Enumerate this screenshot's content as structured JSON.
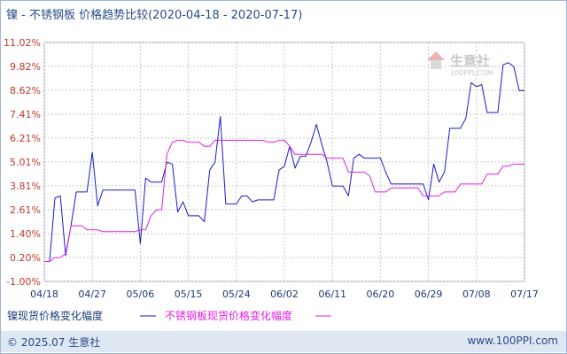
{
  "title": "镍 - 不锈钢板 价格趋势比较(2020-04-18 - 2020-07-17)",
  "watermark": "生意社",
  "watermark_url": "100PPI.COM",
  "footer": {
    "copyright": "© 2025.07 生意社",
    "site": "www.100PPI.com"
  },
  "colors": {
    "nickel": "#1a1acc",
    "steel": "#e020e0",
    "axis_label": "#c0392b",
    "x_label": "#1a3a7a"
  },
  "chart_data": {
    "type": "line",
    "title": "镍 - 不锈钢板 价格趋势比较(2020-04-18 - 2020-07-17)",
    "xlabel": "",
    "ylabel": "",
    "ylim": [
      -1.0,
      11.02
    ],
    "y_ticks": [
      "11.02%",
      "9.82%",
      "8.62%",
      "7.41%",
      "6.21%",
      "5.01%",
      "3.81%",
      "2.61%",
      "1.40%",
      "0.20%",
      "-1.00%"
    ],
    "y_tick_values": [
      11.02,
      9.82,
      8.62,
      7.41,
      6.21,
      5.01,
      3.81,
      2.61,
      1.4,
      0.2,
      -1.0
    ],
    "x_ticks": [
      "04/18",
      "04/27",
      "05/06",
      "05/15",
      "05/24",
      "06/02",
      "06/11",
      "06/20",
      "06/29",
      "07/08",
      "07/17"
    ],
    "x_tick_days": [
      0,
      9,
      18,
      27,
      36,
      45,
      54,
      63,
      72,
      81,
      90
    ],
    "grid": true,
    "legend_position": "bottom",
    "series": [
      {
        "name": "镍现货价格变化幅度",
        "color": "#1a1acc",
        "points": [
          [
            0,
            0.0
          ],
          [
            1,
            0.0
          ],
          [
            2,
            3.2
          ],
          [
            3,
            3.3
          ],
          [
            4,
            0.3
          ],
          [
            5,
            1.8
          ],
          [
            6,
            3.5
          ],
          [
            7,
            3.5
          ],
          [
            8,
            3.5
          ],
          [
            9,
            5.5
          ],
          [
            10,
            2.8
          ],
          [
            11,
            3.6
          ],
          [
            12,
            3.6
          ],
          [
            13,
            3.6
          ],
          [
            14,
            3.6
          ],
          [
            15,
            3.6
          ],
          [
            16,
            3.6
          ],
          [
            17,
            3.6
          ],
          [
            18,
            0.9
          ],
          [
            19,
            4.2
          ],
          [
            20,
            4.0
          ],
          [
            21,
            4.0
          ],
          [
            22,
            4.0
          ],
          [
            23,
            5.0
          ],
          [
            24,
            4.9
          ],
          [
            25,
            2.5
          ],
          [
            26,
            3.0
          ],
          [
            27,
            2.3
          ],
          [
            28,
            2.3
          ],
          [
            29,
            2.3
          ],
          [
            30,
            2.0
          ],
          [
            31,
            4.6
          ],
          [
            32,
            5.0
          ],
          [
            33,
            7.3
          ],
          [
            34,
            2.9
          ],
          [
            35,
            2.9
          ],
          [
            36,
            2.9
          ],
          [
            37,
            3.3
          ],
          [
            38,
            3.3
          ],
          [
            39,
            3.0
          ],
          [
            40,
            3.1
          ],
          [
            41,
            3.1
          ],
          [
            42,
            3.1
          ],
          [
            43,
            3.1
          ],
          [
            44,
            4.6
          ],
          [
            45,
            4.8
          ],
          [
            46,
            5.8
          ],
          [
            47,
            4.7
          ],
          [
            48,
            5.3
          ],
          [
            49,
            5.3
          ],
          [
            50,
            6.0
          ],
          [
            51,
            6.9
          ],
          [
            52,
            5.9
          ],
          [
            53,
            5.0
          ],
          [
            54,
            3.8
          ],
          [
            55,
            3.8
          ],
          [
            56,
            3.8
          ],
          [
            57,
            3.3
          ],
          [
            58,
            5.2
          ],
          [
            59,
            5.4
          ],
          [
            60,
            5.2
          ],
          [
            61,
            5.2
          ],
          [
            62,
            5.2
          ],
          [
            63,
            5.2
          ],
          [
            64,
            4.5
          ],
          [
            65,
            3.9
          ],
          [
            66,
            3.9
          ],
          [
            67,
            3.9
          ],
          [
            68,
            3.9
          ],
          [
            69,
            3.9
          ],
          [
            70,
            3.9
          ],
          [
            71,
            3.9
          ],
          [
            72,
            3.1
          ],
          [
            73,
            4.9
          ],
          [
            74,
            4.0
          ],
          [
            75,
            4.5
          ],
          [
            76,
            6.7
          ],
          [
            77,
            6.7
          ],
          [
            78,
            6.7
          ],
          [
            79,
            7.2
          ],
          [
            80,
            9.0
          ],
          [
            81,
            8.8
          ],
          [
            82,
            8.9
          ],
          [
            83,
            7.5
          ],
          [
            84,
            7.5
          ],
          [
            85,
            7.5
          ],
          [
            86,
            9.9
          ],
          [
            87,
            10.0
          ],
          [
            88,
            9.8
          ],
          [
            89,
            8.6
          ],
          [
            90,
            8.6
          ]
        ]
      },
      {
        "name": "不锈钢板现货价格变化幅度",
        "color": "#e020e0",
        "points": [
          [
            0,
            0.0
          ],
          [
            1,
            0.0
          ],
          [
            2,
            0.2
          ],
          [
            3,
            0.2
          ],
          [
            4,
            0.4
          ],
          [
            5,
            1.8
          ],
          [
            6,
            1.8
          ],
          [
            7,
            1.8
          ],
          [
            8,
            1.6
          ],
          [
            9,
            1.6
          ],
          [
            10,
            1.6
          ],
          [
            11,
            1.5
          ],
          [
            12,
            1.5
          ],
          [
            13,
            1.5
          ],
          [
            14,
            1.5
          ],
          [
            15,
            1.5
          ],
          [
            16,
            1.5
          ],
          [
            17,
            1.5
          ],
          [
            18,
            1.6
          ],
          [
            19,
            1.6
          ],
          [
            20,
            2.3
          ],
          [
            21,
            2.6
          ],
          [
            22,
            2.6
          ],
          [
            23,
            5.4
          ],
          [
            24,
            6.0
          ],
          [
            25,
            6.1
          ],
          [
            26,
            6.1
          ],
          [
            27,
            6.0
          ],
          [
            28,
            6.0
          ],
          [
            29,
            6.0
          ],
          [
            30,
            5.8
          ],
          [
            31,
            5.8
          ],
          [
            32,
            6.1
          ],
          [
            33,
            6.1
          ],
          [
            34,
            6.1
          ],
          [
            35,
            6.1
          ],
          [
            36,
            6.1
          ],
          [
            37,
            6.1
          ],
          [
            38,
            6.1
          ],
          [
            39,
            6.1
          ],
          [
            40,
            6.1
          ],
          [
            41,
            6.1
          ],
          [
            42,
            6.0
          ],
          [
            43,
            6.0
          ],
          [
            44,
            6.1
          ],
          [
            45,
            6.1
          ],
          [
            46,
            5.8
          ],
          [
            47,
            5.4
          ],
          [
            48,
            5.4
          ],
          [
            49,
            5.4
          ],
          [
            50,
            5.4
          ],
          [
            51,
            5.4
          ],
          [
            52,
            5.4
          ],
          [
            53,
            5.2
          ],
          [
            54,
            5.2
          ],
          [
            55,
            5.2
          ],
          [
            56,
            5.2
          ],
          [
            57,
            4.5
          ],
          [
            58,
            4.5
          ],
          [
            59,
            4.5
          ],
          [
            60,
            4.5
          ],
          [
            61,
            4.3
          ],
          [
            62,
            3.5
          ],
          [
            63,
            3.5
          ],
          [
            64,
            3.5
          ],
          [
            65,
            3.7
          ],
          [
            66,
            3.7
          ],
          [
            67,
            3.7
          ],
          [
            68,
            3.7
          ],
          [
            69,
            3.7
          ],
          [
            70,
            3.7
          ],
          [
            71,
            3.3
          ],
          [
            72,
            3.3
          ],
          [
            73,
            3.3
          ],
          [
            74,
            3.3
          ],
          [
            75,
            3.5
          ],
          [
            76,
            3.5
          ],
          [
            77,
            3.5
          ],
          [
            78,
            3.9
          ],
          [
            79,
            3.9
          ],
          [
            80,
            3.9
          ],
          [
            81,
            3.9
          ],
          [
            82,
            3.9
          ],
          [
            83,
            4.4
          ],
          [
            84,
            4.4
          ],
          [
            85,
            4.4
          ],
          [
            86,
            4.8
          ],
          [
            87,
            4.8
          ],
          [
            88,
            4.9
          ],
          [
            89,
            4.9
          ],
          [
            90,
            4.9
          ]
        ]
      }
    ]
  }
}
